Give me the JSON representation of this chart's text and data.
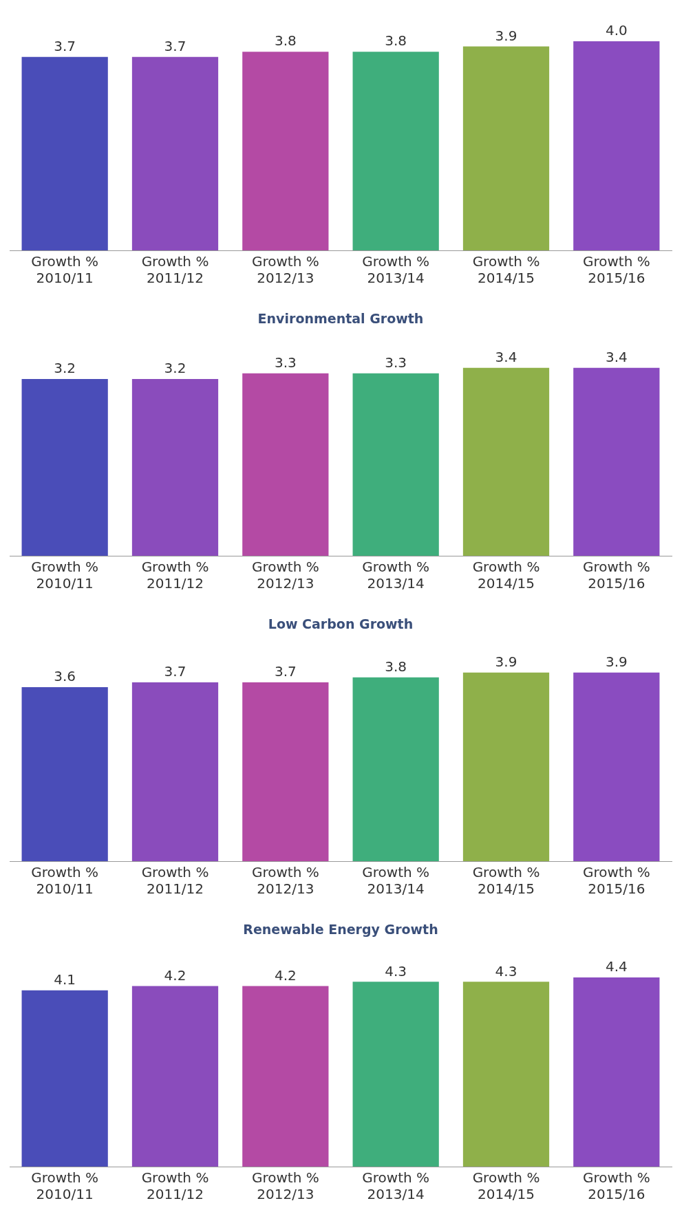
{
  "chart_data": [
    {
      "type": "bar",
      "categories": [
        "Growth %\n2010/11",
        "Growth %\n2011/12",
        "Growth %\n2012/13",
        "Growth %\n2013/14",
        "Growth %\n2014/15",
        "Growth %\n2015/16"
      ],
      "values": [
        3.7,
        3.7,
        3.8,
        3.8,
        3.9,
        4.0
      ],
      "value_labels": [
        "3.7",
        "3.7",
        "3.8",
        "3.8",
        "3.9",
        "4.0"
      ],
      "colors": [
        "#4a4db8",
        "#8a4cbc",
        "#b44aa4",
        "#3fae7c",
        "#8fb04a",
        "#8a4cc0"
      ],
      "tick_labels": "x",
      "grid": false,
      "legend": false
    },
    {
      "type": "bar",
      "title": "Environmental Growth",
      "categories": [
        "Growth %\n2010/11",
        "Growth %\n2011/12",
        "Growth %\n2012/13",
        "Growth %\n2013/14",
        "Growth %\n2014/15",
        "Growth %\n2015/16"
      ],
      "values": [
        3.2,
        3.2,
        3.3,
        3.3,
        3.4,
        3.4
      ],
      "colors": [
        "#4a4db8",
        "#8a4cbc",
        "#b44aa4",
        "#3fae7c",
        "#8fb04a",
        "#8a4cc0"
      ],
      "data_labels": true,
      "tick_labels": "x",
      "grid": false,
      "legend": false
    },
    {
      "type": "bar",
      "title": "Low Carbon Growth",
      "categories": [
        "Growth %\n2010/11",
        "Growth %\n2011/12",
        "Growth %\n2012/13",
        "Growth %\n2013/14",
        "Growth %\n2014/15",
        "Growth %\n2015/16"
      ],
      "values": [
        3.6,
        3.7,
        3.7,
        3.8,
        3.9,
        3.9
      ],
      "colors": [
        "#4a4db8",
        "#8a4cbc",
        "#b44aa4",
        "#3fae7c",
        "#8fb04a",
        "#8a4cc0"
      ],
      "data_labels": true,
      "tick_labels": "x",
      "grid": false,
      "legend": false
    },
    {
      "type": "bar",
      "title": "Renewable Energy Growth",
      "categories": [
        "Growth %\n2010/11",
        "Growth %\n2011/12",
        "Growth %\n2012/13",
        "Growth %\n2013/14",
        "Growth %\n2014/15",
        "Growth %\n2015/16"
      ],
      "values": [
        4.1,
        4.2,
        4.2,
        4.3,
        4.3,
        4.4
      ],
      "colors": [
        "#4a4db8",
        "#8a4cbc",
        "#b44aa4",
        "#3fae7c",
        "#8fb04a",
        "#8a4cc0"
      ],
      "data_labels": true,
      "tick_labels": "x",
      "grid": false,
      "legend": false
    }
  ]
}
